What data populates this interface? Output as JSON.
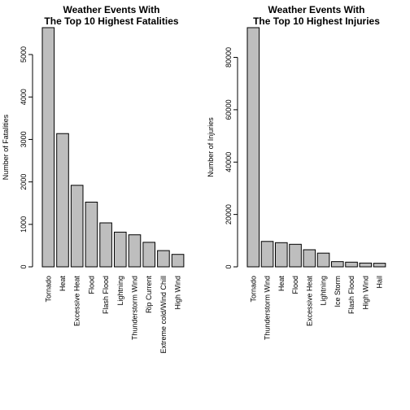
{
  "chart_data": [
    {
      "type": "bar",
      "title_line1": "Weather Events With",
      "title_line2": "The Top 10 Highest Fatalities",
      "xlabel": "",
      "ylabel": "Number of Fatalities",
      "categories": [
        "Tornado",
        "Heat",
        "Excessive Heat",
        "Flood",
        "Flash Flood",
        "Lightning",
        "Thunderstorm Wind",
        "Rip Current",
        "Extreme cold/Wind Chill",
        "High Wind"
      ],
      "values": [
        5633,
        3138,
        1920,
        1524,
        1035,
        817,
        754,
        577,
        382,
        293
      ],
      "yticks": [
        0,
        1000,
        2000,
        3000,
        4000,
        5000
      ],
      "yticklabels": [
        "0",
        "1000",
        "2000",
        "3000",
        "4000",
        "5000"
      ],
      "ylim": [
        0,
        5633
      ],
      "bar_color": "#bebebe",
      "grid": false
    },
    {
      "type": "bar",
      "title_line1": "Weather Events With",
      "title_line2": "The Top 10 Highest Injuries",
      "xlabel": "",
      "ylabel": "Number of Injuries",
      "categories": [
        "Tornado",
        "Thunderstorm Wind",
        "Heat",
        "Flood",
        "Excessive Heat",
        "Lightning",
        "Ice Storm",
        "Flash Flood",
        "High Wind",
        "Hail"
      ],
      "values": [
        91346,
        9700,
        9224,
        8604,
        6525,
        5230,
        1975,
        1777,
        1439,
        1361
      ],
      "yticks": [
        0,
        20000,
        40000,
        60000,
        80000
      ],
      "yticklabels": [
        "0",
        "20000",
        "40000",
        "60000",
        "80000"
      ],
      "ylim": [
        0,
        91346
      ],
      "bar_color": "#bebebe",
      "grid": false
    }
  ]
}
